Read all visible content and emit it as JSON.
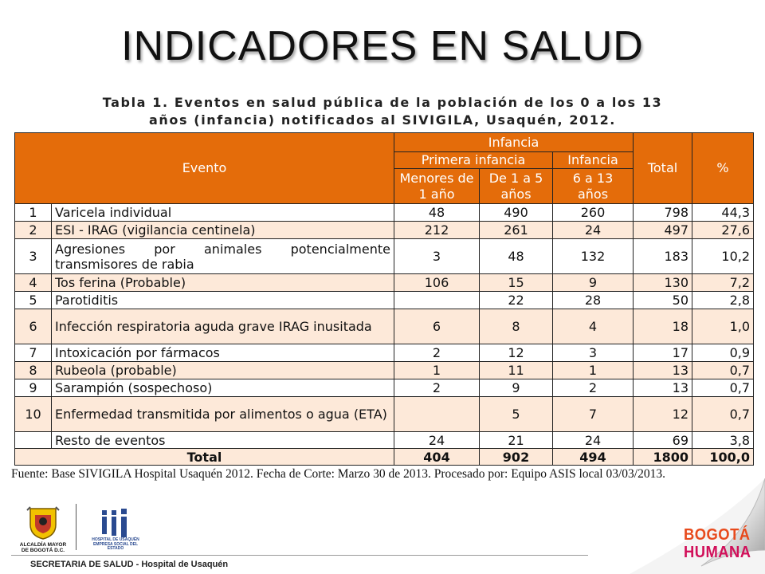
{
  "title": "INDICADORES EN SALUD",
  "caption": {
    "line1": "Tabla 1. Eventos en salud pública de la población de los 0 a los 13",
    "line2": "años (infancia) notificados al SIVIGILA, Usaquén, 2012."
  },
  "table": {
    "headers": {
      "evento": "Evento",
      "infancia_group": "Infancia",
      "primera_infancia": "Primera infancia",
      "infancia_sub": "Infancia",
      "menores_1": "Menores de 1 año",
      "de_1_a_5": "De 1 a 5 años",
      "de_6_a_13": "6 a 13 años",
      "total": "Total",
      "pct": "%"
    },
    "rows": [
      {
        "num": "1",
        "evento": "Varicela individual",
        "m1": "48",
        "d1a5": "490",
        "d6a13": "260",
        "total": "798",
        "pct": "44,3"
      },
      {
        "num": "2",
        "evento": "ESI - IRAG (vigilancia centinela)",
        "m1": "212",
        "d1a5": "261",
        "d6a13": "24",
        "total": "497",
        "pct": "27,6"
      },
      {
        "num": "3",
        "evento": "Agresiones por animales potencialmente transmisores de rabia",
        "m1": "3",
        "d1a5": "48",
        "d6a13": "132",
        "total": "183",
        "pct": "10,2"
      },
      {
        "num": "4",
        "evento": "Tos ferina (Probable)",
        "m1": "106",
        "d1a5": "15",
        "d6a13": "9",
        "total": "130",
        "pct": "7,2"
      },
      {
        "num": "5",
        "evento": "Parotiditis",
        "m1": "",
        "d1a5": "22",
        "d6a13": "28",
        "total": "50",
        "pct": "2,8"
      },
      {
        "num": "6",
        "evento": "Infección respiratoria aguda grave IRAG inusitada",
        "m1": "6",
        "d1a5": "8",
        "d6a13": "4",
        "total": "18",
        "pct": "1,0"
      },
      {
        "num": "7",
        "evento": "Intoxicación por fármacos",
        "m1": "2",
        "d1a5": "12",
        "d6a13": "3",
        "total": "17",
        "pct": "0,9"
      },
      {
        "num": "8",
        "evento": "Rubeola (probable)",
        "m1": "1",
        "d1a5": "11",
        "d6a13": "1",
        "total": "13",
        "pct": "0,7"
      },
      {
        "num": "9",
        "evento": "Sarampión (sospechoso)",
        "m1": "2",
        "d1a5": "9",
        "d6a13": "2",
        "total": "13",
        "pct": "0,7"
      },
      {
        "num": "10",
        "evento": "Enfermedad transmitida por alimentos o agua (ETA)",
        "m1": "",
        "d1a5": "5",
        "d6a13": "7",
        "total": "12",
        "pct": "0,7"
      },
      {
        "num": "",
        "evento": "Resto de eventos",
        "m1": "24",
        "d1a5": "21",
        "d6a13": "24",
        "total": "69",
        "pct": "3,8"
      }
    ],
    "totals": {
      "label": "Total",
      "m1": "404",
      "d1a5": "902",
      "d6a13": "494",
      "total": "1800",
      "pct": "100,0"
    }
  },
  "source": "Fuente: Base SIVIGILA Hospital Usaquén 2012. Fecha de Corte: Marzo 30 de 2013. Procesado por: Equipo ASIS local 03/03/2013.",
  "footer": {
    "text": "SECRETARIA DE SALUD - Hospital de Usaquén",
    "logo_left_caption_1": "ALCALDÍA MAYOR",
    "logo_left_caption_2": "DE BOGOTÁ D.C.",
    "hospital_caption_1": "HOSPITAL DE USAQUÉN",
    "hospital_caption_2": "EMPRESA SOCIAL DEL ESTADO",
    "bogota_1": "BOGOTÁ",
    "bogota_2": "HUMANA"
  },
  "colors": {
    "header_orange": "#e46c0a",
    "row_stripe": "#fde9d9",
    "bogota_orange": "#e84a1c",
    "humana_pink": "#d1105a"
  },
  "icons": [
    "bogota-coat-of-arms-icon",
    "hospital-usaquen-logo-icon",
    "page-curl-icon"
  ]
}
